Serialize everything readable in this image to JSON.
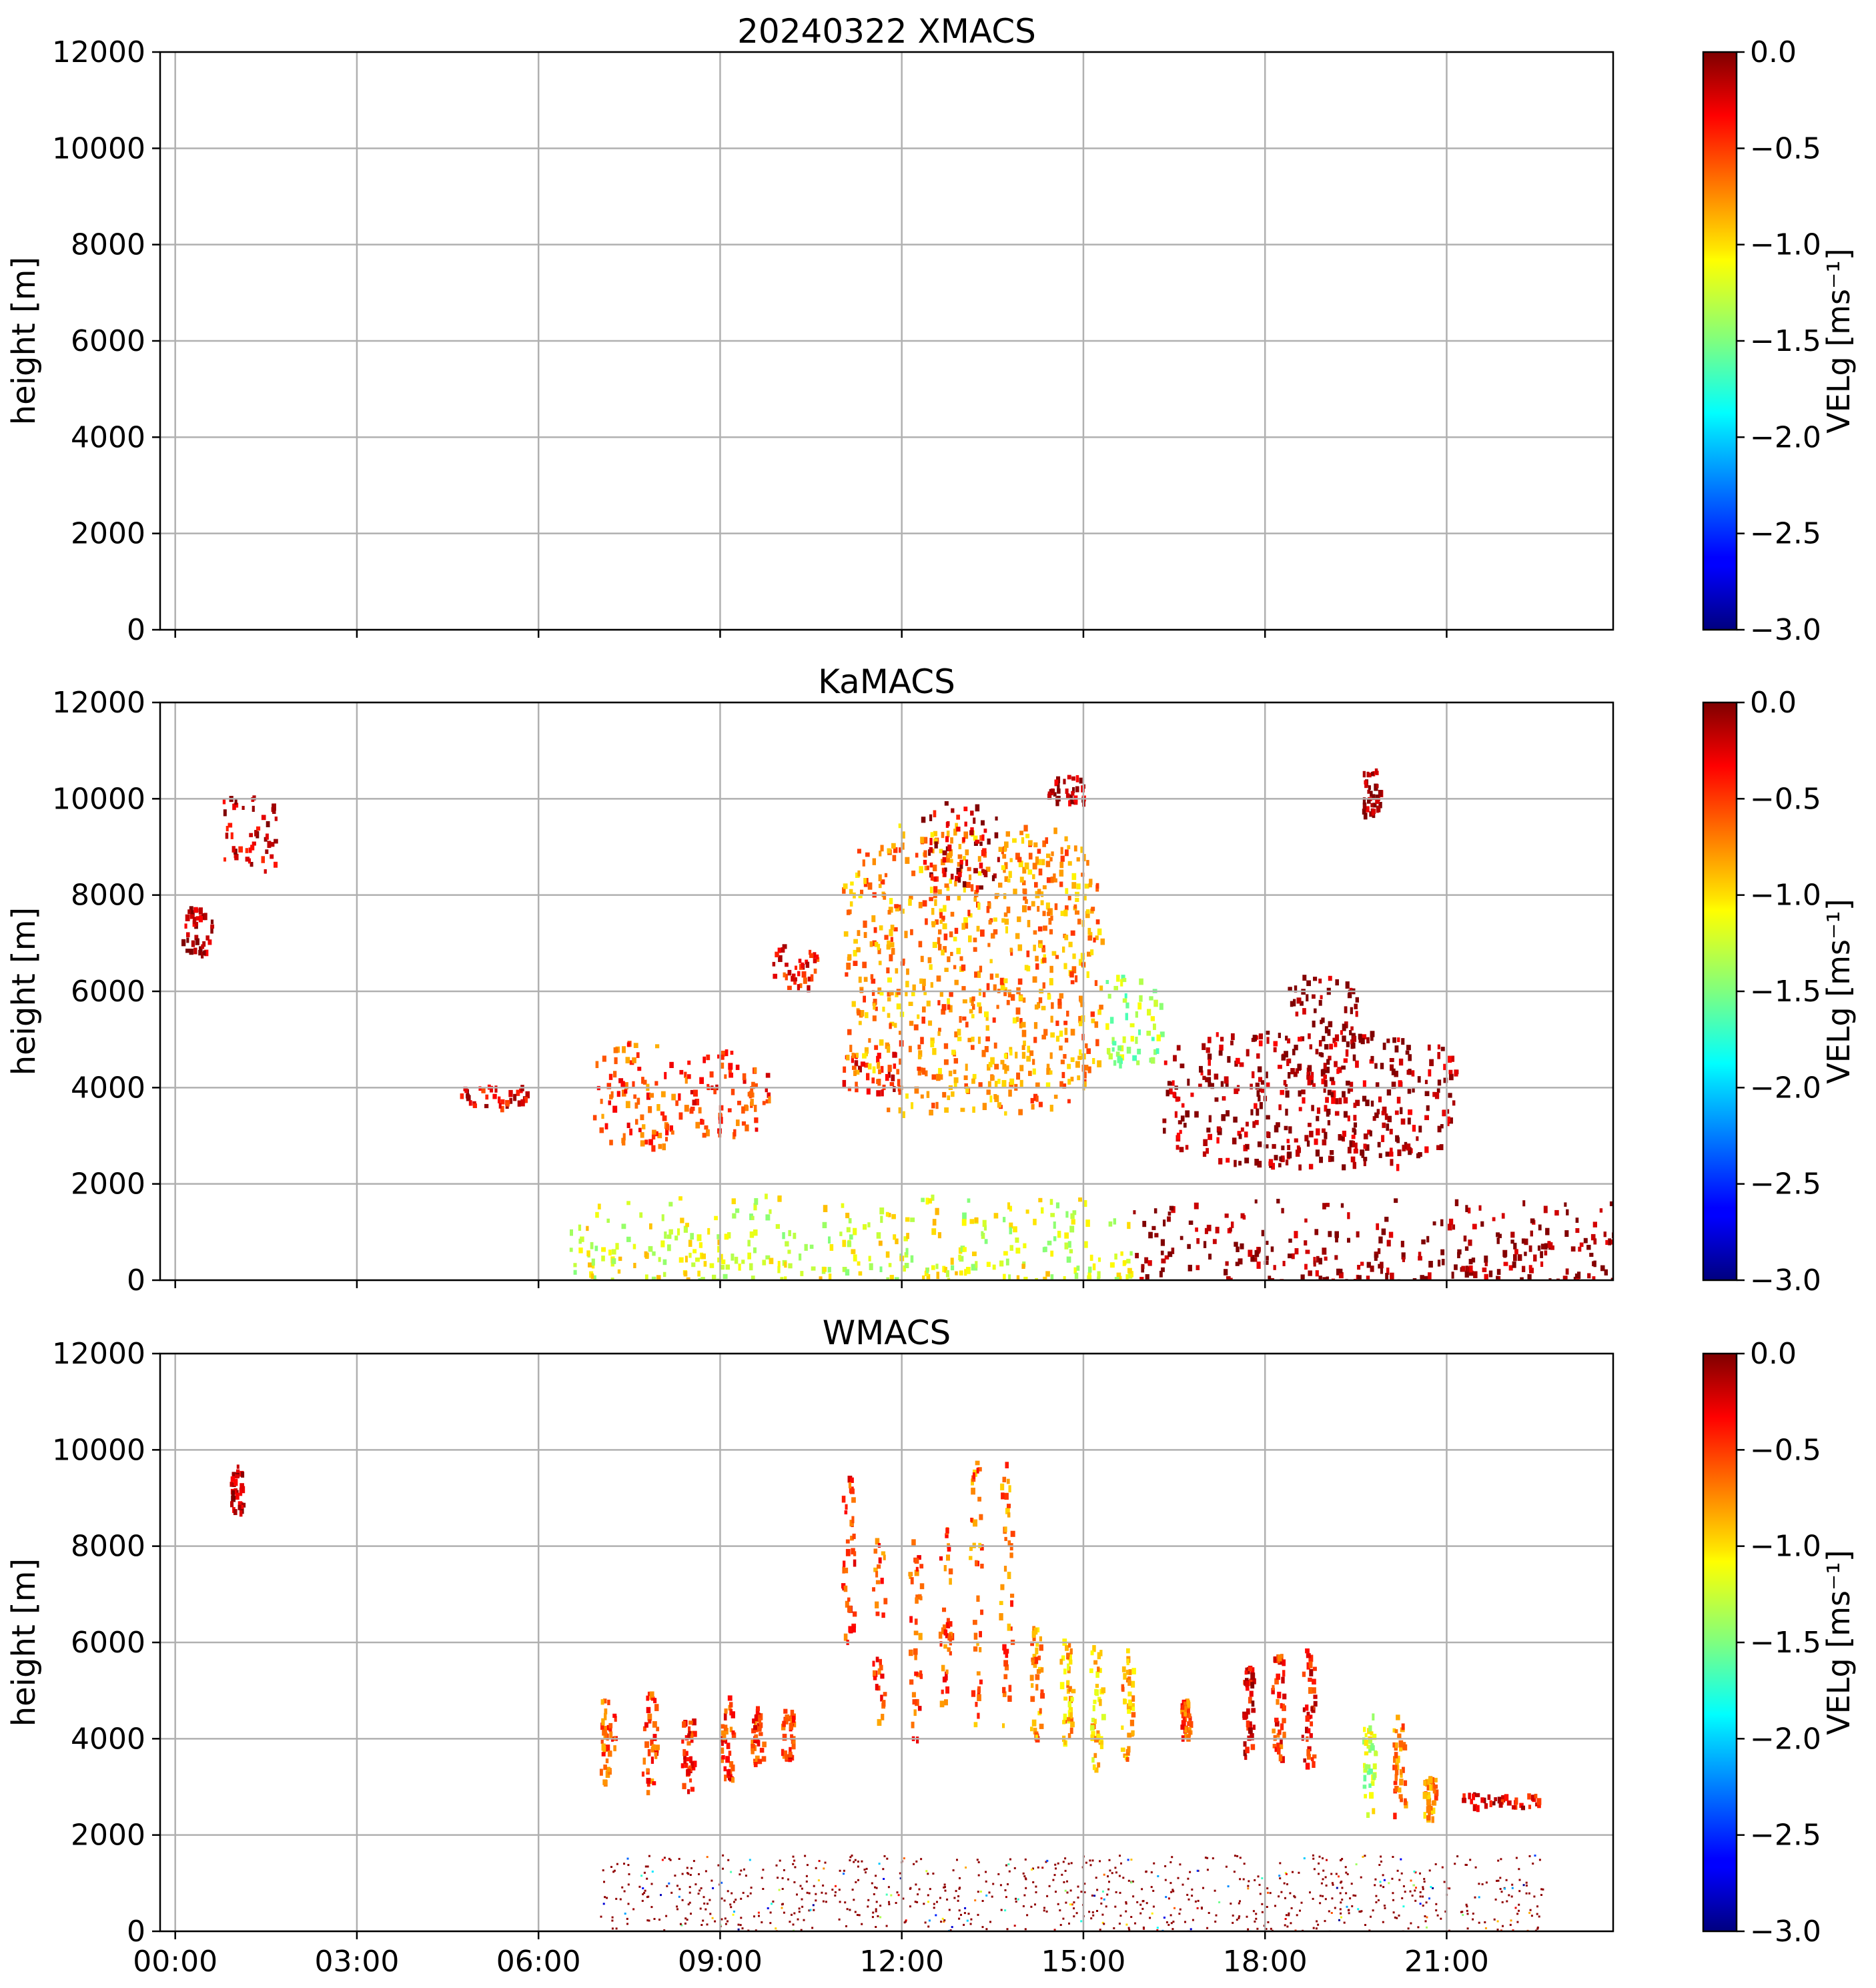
{
  "chart_data": [
    {
      "type": "heatmap",
      "title": "20240322 XMACS",
      "ylabel": "height [m]",
      "xlabel": "",
      "xlim": [
        -0.25,
        23.75
      ],
      "ylim": [
        0,
        12000
      ],
      "x_ticks": [
        0,
        3,
        6,
        9,
        12,
        15,
        18,
        21
      ],
      "x_tick_labels": [
        "00:00",
        "03:00",
        "06:00",
        "09:00",
        "12:00",
        "15:00",
        "18:00",
        "21:00"
      ],
      "show_x_tick_labels": false,
      "y_ticks": [
        0,
        2000,
        4000,
        6000,
        8000,
        10000,
        12000
      ],
      "y_tick_labels": [
        "0",
        "2000",
        "4000",
        "6000",
        "8000",
        "10000",
        "12000"
      ],
      "grid": true,
      "colorbar": {
        "label": "VELg [ms⁻¹]",
        "range": [
          -3.0,
          0.0
        ],
        "ticks": [
          0.0,
          -0.5,
          -1.0,
          -1.5,
          -2.0,
          -2.5,
          -3.0
        ],
        "tick_labels": [
          "0.0",
          "−0.5",
          "−1.0",
          "−1.5",
          "−2.0",
          "−2.5",
          "−3.0"
        ],
        "colormap": "jet"
      },
      "features": []
    },
    {
      "type": "heatmap",
      "title": "KaMACS",
      "ylabel": "height [m]",
      "xlabel": "",
      "xlim": [
        -0.25,
        23.75
      ],
      "ylim": [
        0,
        12000
      ],
      "x_ticks": [
        0,
        3,
        6,
        9,
        12,
        15,
        18,
        21
      ],
      "x_tick_labels": [
        "00:00",
        "03:00",
        "06:00",
        "09:00",
        "12:00",
        "15:00",
        "18:00",
        "21:00"
      ],
      "show_x_tick_labels": false,
      "y_ticks": [
        0,
        2000,
        4000,
        6000,
        8000,
        10000,
        12000
      ],
      "y_tick_labels": [
        "0",
        "2000",
        "4000",
        "6000",
        "8000",
        "10000",
        "12000"
      ],
      "grid": true,
      "colorbar": {
        "label": "VELg [ms⁻¹]",
        "range": [
          -3.0,
          0.0
        ],
        "ticks": [
          0.0,
          -0.5,
          -1.0,
          -1.5,
          -2.0,
          -2.5,
          -3.0
        ],
        "tick_labels": [
          "0.0",
          "−0.5",
          "−1.0",
          "−1.5",
          "−2.0",
          "−2.5",
          "−3.0"
        ],
        "colormap": "jet"
      },
      "features": [
        {
          "name": "cirrus-patch",
          "t0": 0.7,
          "t1": 1.7,
          "h0": 8500,
          "h1": 10200,
          "vel": -0.2
        },
        {
          "name": "cirrus-patch",
          "t0": 0.1,
          "t1": 0.6,
          "h0": 6800,
          "h1": 7800,
          "vel": -0.1
        },
        {
          "name": "cloud-layer",
          "t0": 4.7,
          "t1": 5.8,
          "h0": 3600,
          "h1": 4100,
          "vel": -0.3
        },
        {
          "name": "cloud-layer",
          "t0": 6.9,
          "t1": 8.3,
          "h0": 2800,
          "h1": 5000,
          "vel": -0.6
        },
        {
          "name": "cloud-layer",
          "t0": 8.3,
          "t1": 9.8,
          "h0": 3000,
          "h1": 4900,
          "vel": -0.5
        },
        {
          "name": "cloud-layer",
          "t0": 9.8,
          "t1": 10.6,
          "h0": 6100,
          "h1": 7000,
          "vel": -0.4
        },
        {
          "name": "cloud-layer",
          "t0": 11.0,
          "t1": 12.0,
          "h0": 3900,
          "h1": 4800,
          "vel": -0.4
        },
        {
          "name": "deep-cloud",
          "t0": 11.0,
          "t1": 15.3,
          "h0": 3500,
          "h1": 9500,
          "vel": -0.8
        },
        {
          "name": "cirrus-patch",
          "t0": 12.3,
          "t1": 13.6,
          "h0": 8200,
          "h1": 10000,
          "vel": -0.2
        },
        {
          "name": "cirrus-patch",
          "t0": 14.4,
          "t1": 15.0,
          "h0": 9900,
          "h1": 10500,
          "vel": -0.1
        },
        {
          "name": "cloud-layer",
          "t0": 15.3,
          "t1": 16.3,
          "h0": 4500,
          "h1": 6400,
          "vel": -1.4
        },
        {
          "name": "cloud-layer",
          "t0": 18.3,
          "t1": 19.5,
          "h0": 3900,
          "h1": 6400,
          "vel": -0.05
        },
        {
          "name": "cloud-layer",
          "t0": 16.3,
          "t1": 21.2,
          "h0": 2400,
          "h1": 5200,
          "vel": -0.1
        },
        {
          "name": "cirrus-patch",
          "t0": 19.6,
          "t1": 19.9,
          "h0": 9500,
          "h1": 10700,
          "vel": -0.1
        },
        {
          "name": "boundary-layer",
          "t0": 6.5,
          "t1": 15.8,
          "h0": 0,
          "h1": 1800,
          "vel": -1.2
        },
        {
          "name": "boundary-layer",
          "t0": 15.8,
          "t1": 23.75,
          "h0": 0,
          "h1": 1700,
          "vel": -0.02
        }
      ]
    },
    {
      "type": "heatmap",
      "title": "WMACS",
      "ylabel": "height [m]",
      "xlabel": "",
      "xlim": [
        -0.25,
        23.75
      ],
      "ylim": [
        0,
        12000
      ],
      "x_ticks": [
        0,
        3,
        6,
        9,
        12,
        15,
        18,
        21
      ],
      "x_tick_labels": [
        "00:00",
        "03:00",
        "06:00",
        "09:00",
        "12:00",
        "15:00",
        "18:00",
        "21:00"
      ],
      "show_x_tick_labels": true,
      "y_ticks": [
        0,
        2000,
        4000,
        6000,
        8000,
        10000,
        12000
      ],
      "y_tick_labels": [
        "0",
        "2000",
        "4000",
        "6000",
        "8000",
        "10000",
        "12000"
      ],
      "grid": true,
      "colorbar": {
        "label": "VELg [ms⁻¹]",
        "range": [
          -3.0,
          0.0
        ],
        "ticks": [
          0.0,
          -0.5,
          -1.0,
          -1.5,
          -2.0,
          -2.5,
          -3.0
        ],
        "tick_labels": [
          "0.0",
          "−0.5",
          "−1.0",
          "−1.5",
          "−2.0",
          "−2.5",
          "−3.0"
        ],
        "colormap": "jet"
      },
      "features": [
        {
          "name": "cirrus-patch",
          "t0": 0.9,
          "t1": 1.1,
          "h0": 8700,
          "h1": 9700,
          "vel": -0.1
        },
        {
          "name": "cloud-strip",
          "t0": 7.0,
          "t1": 7.25,
          "h0": 3100,
          "h1": 5000,
          "vel": -0.6
        },
        {
          "name": "cloud-strip",
          "t0": 7.7,
          "t1": 7.95,
          "h0": 2900,
          "h1": 5000,
          "vel": -0.6
        },
        {
          "name": "cloud-strip",
          "t0": 8.35,
          "t1": 8.55,
          "h0": 2900,
          "h1": 4600,
          "vel": -0.5
        },
        {
          "name": "cloud-strip",
          "t0": 9.0,
          "t1": 9.2,
          "h0": 3100,
          "h1": 4900,
          "vel": -0.5
        },
        {
          "name": "cloud-strip",
          "t0": 9.5,
          "t1": 9.7,
          "h0": 3500,
          "h1": 4700,
          "vel": -0.5
        },
        {
          "name": "cloud-strip",
          "t0": 10.0,
          "t1": 10.2,
          "h0": 3600,
          "h1": 4700,
          "vel": -0.5
        },
        {
          "name": "cloud-strip",
          "t0": 11.0,
          "t1": 11.2,
          "h0": 6000,
          "h1": 9600,
          "vel": -0.5
        },
        {
          "name": "cloud-strip",
          "t0": 11.5,
          "t1": 11.7,
          "h0": 4000,
          "h1": 8400,
          "vel": -0.6
        },
        {
          "name": "cloud-strip",
          "t0": 12.1,
          "t1": 12.3,
          "h0": 4000,
          "h1": 8600,
          "vel": -0.6
        },
        {
          "name": "cloud-strip",
          "t0": 12.6,
          "t1": 12.8,
          "h0": 4500,
          "h1": 8400,
          "vel": -0.6
        },
        {
          "name": "cloud-strip",
          "t0": 13.1,
          "t1": 13.3,
          "h0": 4200,
          "h1": 9800,
          "vel": -0.7
        },
        {
          "name": "cloud-strip",
          "t0": 13.6,
          "t1": 13.8,
          "h0": 4100,
          "h1": 9800,
          "vel": -0.7
        },
        {
          "name": "cloud-strip",
          "t0": 14.1,
          "t1": 14.3,
          "h0": 4000,
          "h1": 6400,
          "vel": -0.8
        },
        {
          "name": "cloud-strip",
          "t0": 14.6,
          "t1": 14.8,
          "h0": 3700,
          "h1": 6100,
          "vel": -0.9
        },
        {
          "name": "cloud-strip",
          "t0": 15.1,
          "t1": 15.3,
          "h0": 3400,
          "h1": 6000,
          "vel": -1.0
        },
        {
          "name": "cloud-strip",
          "t0": 15.6,
          "t1": 15.8,
          "h0": 3500,
          "h1": 5900,
          "vel": -0.9
        },
        {
          "name": "cloud-strip",
          "t0": 16.6,
          "t1": 16.75,
          "h0": 4000,
          "h1": 4900,
          "vel": -0.6
        },
        {
          "name": "cloud-strip",
          "t0": 17.6,
          "t1": 17.8,
          "h0": 3600,
          "h1": 5600,
          "vel": -0.3
        },
        {
          "name": "cloud-strip",
          "t0": 18.1,
          "t1": 18.3,
          "h0": 3600,
          "h1": 5900,
          "vel": -0.5
        },
        {
          "name": "cloud-strip",
          "t0": 18.6,
          "t1": 18.8,
          "h0": 3400,
          "h1": 5900,
          "vel": -0.4
        },
        {
          "name": "cloud-strip",
          "t0": 19.6,
          "t1": 19.8,
          "h0": 2300,
          "h1": 4700,
          "vel": -1.3
        },
        {
          "name": "cloud-strip",
          "t0": 20.1,
          "t1": 20.3,
          "h0": 2300,
          "h1": 4600,
          "vel": -0.7
        },
        {
          "name": "cloud-strip",
          "t0": 20.6,
          "t1": 20.8,
          "h0": 2300,
          "h1": 3300,
          "vel": -0.8
        },
        {
          "name": "cloud-strip",
          "t0": 21.1,
          "t1": 22.6,
          "h0": 2600,
          "h1": 2900,
          "vel": -0.3
        },
        {
          "name": "precip-column",
          "t0": 7.0,
          "t1": 22.6,
          "h0": 0,
          "h1": 1600,
          "vel": -0.1
        }
      ]
    }
  ]
}
